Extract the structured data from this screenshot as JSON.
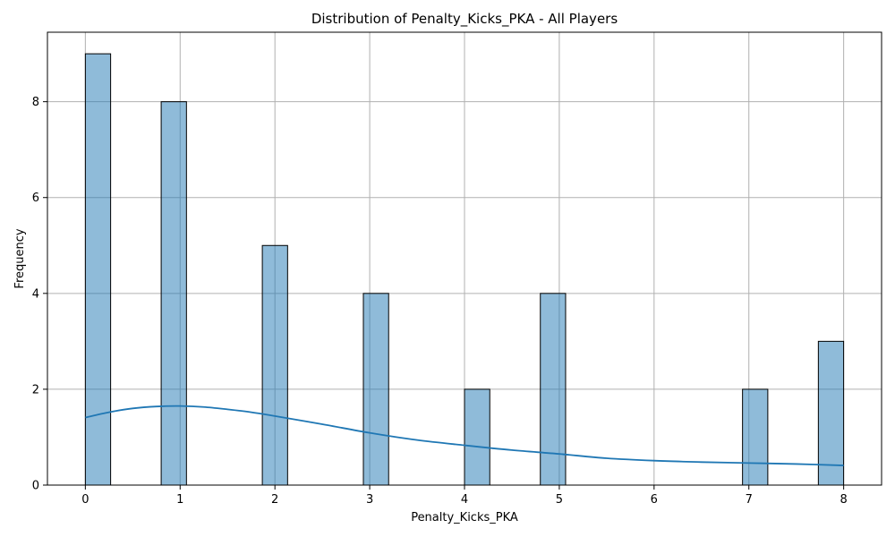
{
  "chart_data": {
    "type": "bar",
    "title": "Distribution of Penalty_Kicks_PKA - All Players",
    "xlabel": "Penalty_Kicks_PKA",
    "ylabel": "Frequency",
    "xlim": [
      -0.4,
      8.4
    ],
    "ylim": [
      0,
      9.45
    ],
    "x_ticks": [
      0,
      1,
      2,
      3,
      4,
      5,
      6,
      7,
      8
    ],
    "y_ticks": [
      0,
      2,
      4,
      6,
      8
    ],
    "grid": true,
    "bin_width": 0.2667,
    "bars": [
      {
        "x_start": 0.0,
        "value": 9
      },
      {
        "x_start": 0.8,
        "value": 8
      },
      {
        "x_start": 1.867,
        "value": 5
      },
      {
        "x_start": 2.933,
        "value": 4
      },
      {
        "x_start": 4.0,
        "value": 2
      },
      {
        "x_start": 4.8,
        "value": 4
      },
      {
        "x_start": 6.933,
        "value": 2
      },
      {
        "x_start": 7.733,
        "value": 3
      }
    ],
    "kde": {
      "x": [
        0,
        0.25,
        0.5,
        0.75,
        1.0,
        1.25,
        1.5,
        1.75,
        2.0,
        2.5,
        3.0,
        3.5,
        4.0,
        4.5,
        5.0,
        5.5,
        6.0,
        6.5,
        7.0,
        7.5,
        8.0
      ],
      "y": [
        1.41,
        1.52,
        1.6,
        1.64,
        1.65,
        1.63,
        1.58,
        1.52,
        1.44,
        1.27,
        1.09,
        0.94,
        0.83,
        0.73,
        0.65,
        0.56,
        0.51,
        0.48,
        0.46,
        0.44,
        0.41
      ]
    }
  }
}
